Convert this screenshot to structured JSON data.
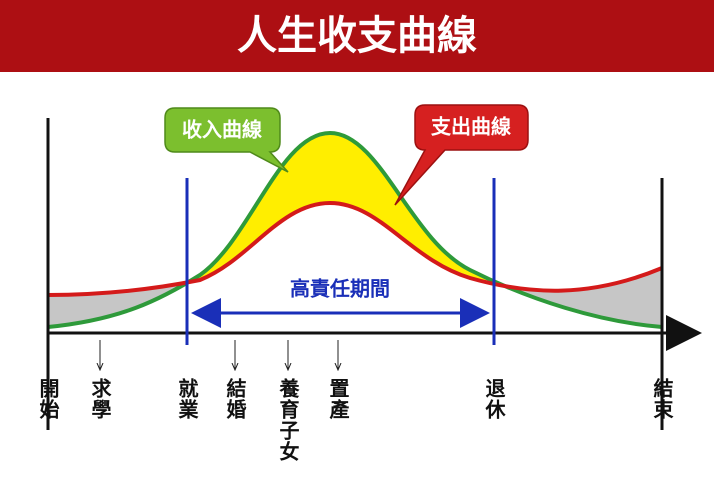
{
  "title": "人生收支曲線",
  "income_label": "收入曲線",
  "expense_label": "支出曲線",
  "period_label": "高責任期間",
  "stages": [
    {
      "label": "開始"
    },
    {
      "label": "求學"
    },
    {
      "label": "就業"
    },
    {
      "label": "結婚"
    },
    {
      "label": "養育子女"
    },
    {
      "label": "置產"
    },
    {
      "label": "退休"
    },
    {
      "label": "結束"
    }
  ]
}
